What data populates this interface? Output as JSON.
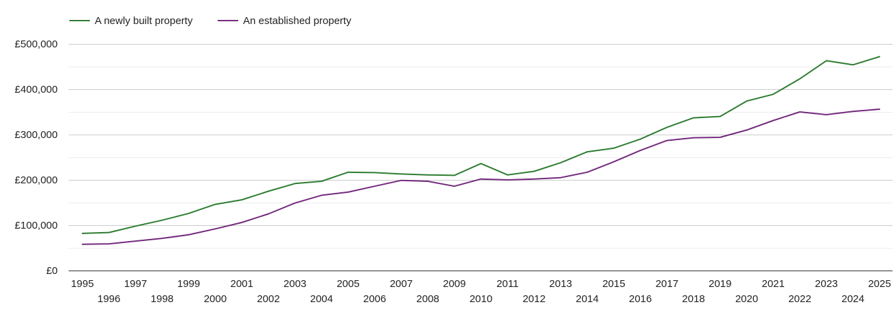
{
  "chart_data": {
    "type": "line",
    "title": "",
    "xlabel": "",
    "ylabel": "",
    "x": [
      1995,
      1996,
      1997,
      1998,
      1999,
      2000,
      2001,
      2002,
      2003,
      2004,
      2005,
      2006,
      2007,
      2008,
      2009,
      2010,
      2011,
      2012,
      2013,
      2014,
      2015,
      2016,
      2017,
      2018,
      2019,
      2020,
      2021,
      2022,
      2023,
      2024,
      2025
    ],
    "x_tick_labels": [
      "1995",
      "1996",
      "1997",
      "1998",
      "1999",
      "2000",
      "2001",
      "2002",
      "2003",
      "2004",
      "2005",
      "2006",
      "2007",
      "2008",
      "2009",
      "2010",
      "2011",
      "2012",
      "2013",
      "2014",
      "2015",
      "2016",
      "2017",
      "2018",
      "2019",
      "2020",
      "2021",
      "2022",
      "2023",
      "2024",
      "2025"
    ],
    "ylim": [
      0,
      500000
    ],
    "y_ticks": [
      0,
      100000,
      200000,
      300000,
      400000,
      500000
    ],
    "y_tick_labels": [
      "£0",
      "£100,000",
      "£200,000",
      "£300,000",
      "£400,000",
      "£500,000"
    ],
    "grid": true,
    "minor_grid": true,
    "legend_position": "top-left",
    "series": [
      {
        "name": "A newly built property",
        "color": "#2e7d32",
        "values": [
          82000,
          84000,
          98000,
          111000,
          126000,
          146000,
          156000,
          175000,
          192000,
          197000,
          217000,
          216000,
          213000,
          211000,
          210000,
          236000,
          211000,
          219000,
          238000,
          262000,
          270000,
          290000,
          316000,
          337000,
          340000,
          374000,
          389000,
          423000,
          463000,
          454000,
          472000
        ]
      },
      {
        "name": "An established property",
        "color": "#742a7e",
        "values": [
          58000,
          59000,
          65000,
          71000,
          79000,
          92000,
          106000,
          125000,
          149000,
          166000,
          173000,
          186000,
          199000,
          197000,
          186000,
          202000,
          200000,
          202000,
          205000,
          217000,
          240000,
          265000,
          287000,
          293000,
          294000,
          310000,
          331000,
          350000,
          344000,
          351000,
          356000
        ]
      }
    ]
  }
}
